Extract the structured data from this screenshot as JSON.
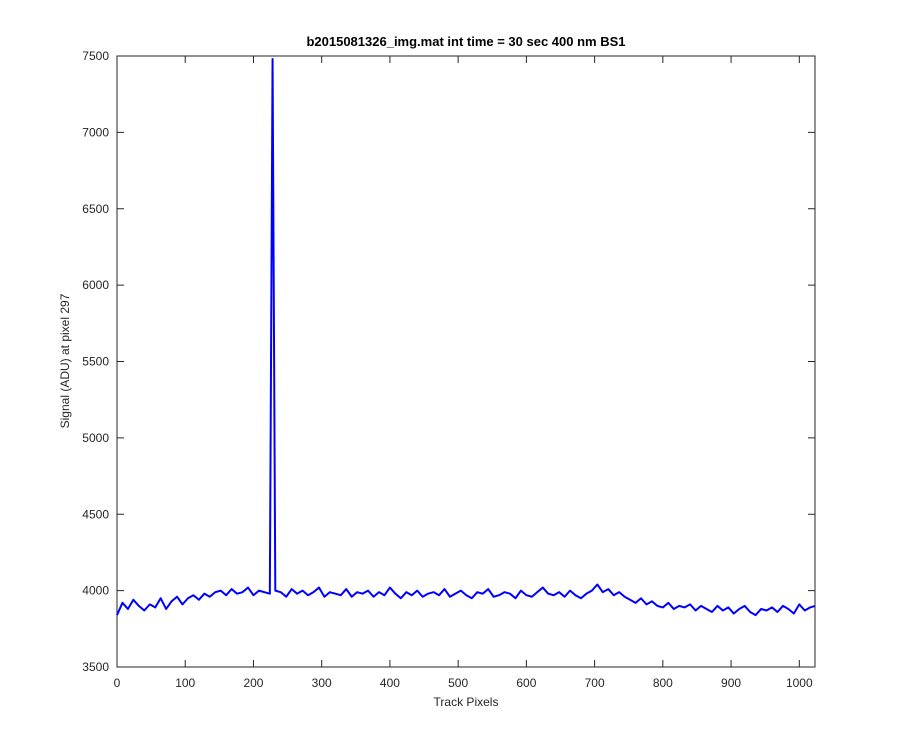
{
  "chart_data": {
    "type": "line",
    "title": "b2015081326_img.mat int time = 30 sec  400 nm BS1",
    "x_label": "Track Pixels",
    "y_label": "Signal (ADU) at pixel 297",
    "xlim": [
      0,
      1023
    ],
    "ylim": [
      3500,
      7500
    ],
    "xticks": [
      0,
      100,
      200,
      300,
      400,
      500,
      600,
      700,
      800,
      900,
      1000
    ],
    "yticks": [
      3500,
      4000,
      4500,
      5000,
      5500,
      6000,
      6500,
      7000,
      7500
    ],
    "x": [
      0,
      8,
      16,
      24,
      32,
      40,
      48,
      56,
      64,
      72,
      80,
      88,
      96,
      104,
      112,
      120,
      128,
      136,
      144,
      152,
      160,
      168,
      176,
      184,
      192,
      200,
      208,
      216,
      224,
      228,
      232,
      240,
      248,
      256,
      264,
      272,
      280,
      288,
      296,
      304,
      312,
      320,
      328,
      336,
      344,
      352,
      360,
      368,
      376,
      384,
      392,
      400,
      408,
      416,
      424,
      432,
      440,
      448,
      456,
      464,
      472,
      480,
      488,
      496,
      504,
      512,
      520,
      528,
      536,
      544,
      552,
      560,
      568,
      576,
      584,
      592,
      600,
      608,
      616,
      624,
      632,
      640,
      648,
      656,
      664,
      672,
      680,
      688,
      696,
      704,
      712,
      720,
      728,
      736,
      744,
      752,
      760,
      768,
      776,
      784,
      792,
      800,
      808,
      816,
      824,
      832,
      840,
      848,
      856,
      864,
      872,
      880,
      888,
      896,
      904,
      912,
      920,
      928,
      936,
      944,
      952,
      960,
      968,
      976,
      984,
      992,
      1000,
      1008,
      1016,
      1023
    ],
    "series": [
      {
        "color": "#0000ff",
        "values": [
          3840,
          3920,
          3880,
          3940,
          3900,
          3870,
          3910,
          3890,
          3950,
          3880,
          3930,
          3960,
          3910,
          3950,
          3970,
          3940,
          3980,
          3960,
          3990,
          4000,
          3970,
          4010,
          3980,
          3990,
          4020,
          3970,
          4000,
          3990,
          3980,
          7480,
          4000,
          3990,
          3960,
          4010,
          3980,
          4000,
          3970,
          3990,
          4020,
          3960,
          3990,
          3980,
          3970,
          4010,
          3960,
          3990,
          3980,
          4000,
          3960,
          3990,
          3970,
          4020,
          3980,
          3950,
          3990,
          3970,
          4000,
          3960,
          3980,
          3990,
          3970,
          4010,
          3960,
          3980,
          4000,
          3970,
          3950,
          3990,
          3980,
          4010,
          3960,
          3970,
          3990,
          3980,
          3950,
          4000,
          3970,
          3960,
          3990,
          4020,
          3980,
          3970,
          3990,
          3960,
          4000,
          3970,
          3950,
          3980,
          4000,
          4040,
          3990,
          4010,
          3970,
          3990,
          3960,
          3940,
          3920,
          3950,
          3910,
          3930,
          3900,
          3890,
          3920,
          3880,
          3900,
          3890,
          3910,
          3870,
          3900,
          3880,
          3860,
          3900,
          3870,
          3890,
          3850,
          3880,
          3900,
          3860,
          3840,
          3880,
          3870,
          3890,
          3860,
          3900,
          3880,
          3850,
          3910,
          3870,
          3890,
          3900
        ]
      }
    ]
  }
}
